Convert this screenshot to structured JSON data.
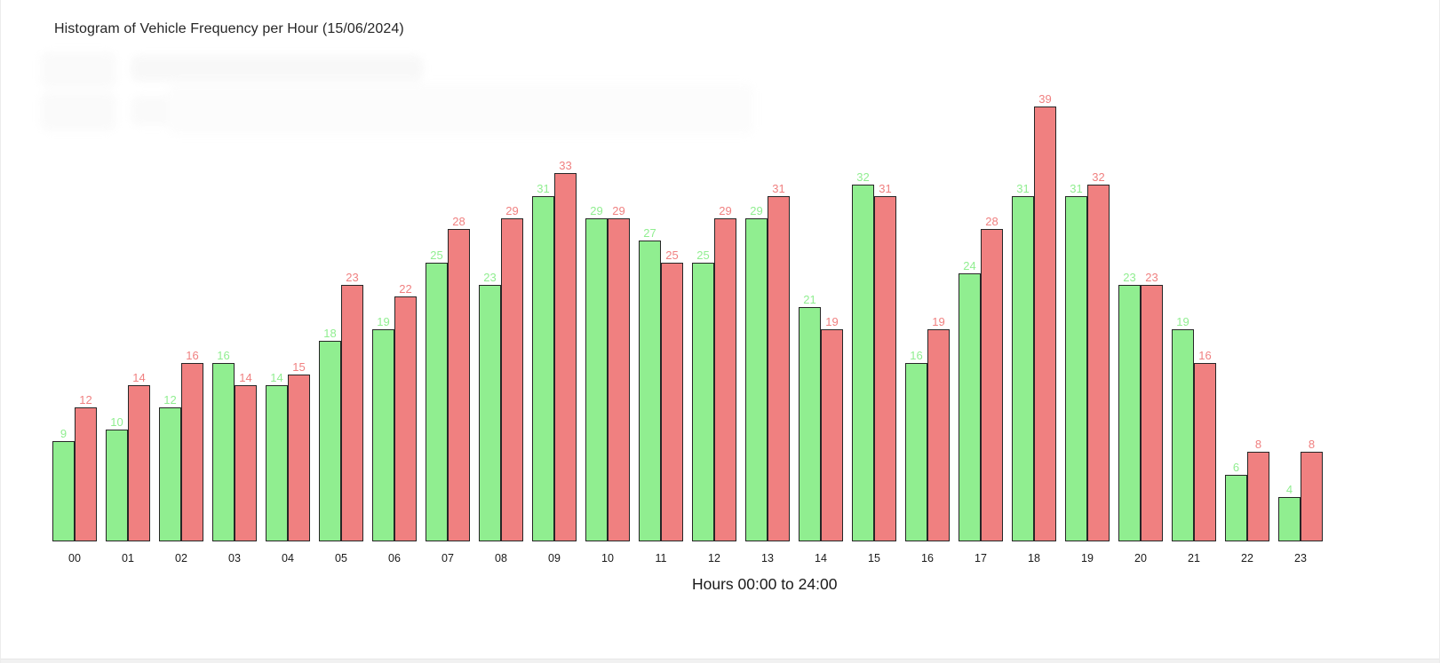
{
  "window": {
    "background": "#ffffff",
    "edge_color": "#ececec",
    "bottom_strip_color": "#f1f1f1"
  },
  "chart": {
    "title": "Histogram of Vehicle Frequency per Hour (15/06/2024)",
    "xlabel": "Hours 00:00 to 24:00"
  },
  "watermark": {
    "visible": true,
    "legible": false
  },
  "chart_data": {
    "type": "bar",
    "title": "Histogram of Vehicle Frequency per Hour (15/06/2024)",
    "xlabel": "Hours 00:00 to 24:00",
    "ylabel": "",
    "categories": [
      "00",
      "01",
      "02",
      "03",
      "04",
      "05",
      "06",
      "07",
      "08",
      "09",
      "10",
      "11",
      "12",
      "13",
      "14",
      "15",
      "16",
      "17",
      "18",
      "19",
      "20",
      "21",
      "22",
      "23"
    ],
    "series": [
      {
        "name": "green-series",
        "color": "#90EE90",
        "values": [
          9,
          10,
          12,
          16,
          14,
          18,
          19,
          25,
          23,
          31,
          29,
          27,
          25,
          29,
          21,
          32,
          16,
          24,
          31,
          31,
          23,
          19,
          6,
          4
        ]
      },
      {
        "name": "red-series",
        "color": "#F08080",
        "values": [
          12,
          14,
          16,
          14,
          15,
          23,
          22,
          28,
          29,
          33,
          29,
          25,
          29,
          31,
          19,
          31,
          19,
          28,
          39,
          32,
          23,
          16,
          8,
          8
        ]
      }
    ],
    "ylim": [
      0,
      39
    ],
    "grid": false,
    "y_axis_visible": false,
    "legend_position": "none",
    "bar_value_labels": true,
    "bar_edge_color": "#262626",
    "tick_label_color": "#1a1a1a"
  }
}
